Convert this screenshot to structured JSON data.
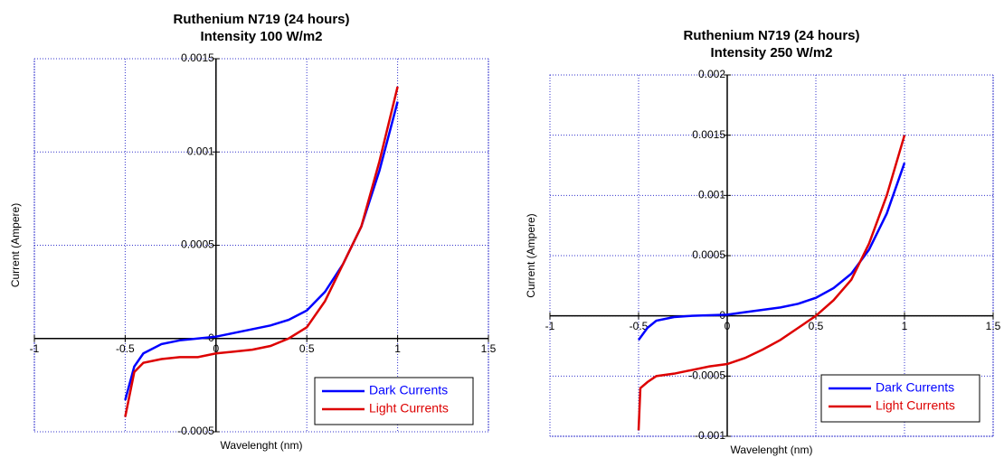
{
  "chart_data": [
    {
      "type": "line",
      "title": "Ruthenium N719 (24 hours)",
      "subtitle": "Intensity 100 W/m2",
      "x_label": "Wavelenght (nm)",
      "y_label": "Current (Ampere)",
      "xlim": [
        -1,
        1.5
      ],
      "xticks": [
        -1,
        -0.5,
        0,
        0.5,
        1,
        1.5
      ],
      "ylim": [
        -0.0005,
        0.0015
      ],
      "yticks": [
        -0.0005,
        0,
        0.0005,
        0.001,
        0.0015
      ],
      "grid": true,
      "legend": "lower right",
      "series": [
        {
          "name": "Dark Currents",
          "color": "#0000ff",
          "x": [
            -0.5,
            -0.45,
            -0.4,
            -0.3,
            -0.2,
            -0.1,
            0,
            0.1,
            0.2,
            0.3,
            0.4,
            0.5,
            0.6,
            0.7,
            0.8,
            0.9,
            1
          ],
          "values": [
            -0.00033,
            -0.00015,
            -8e-05,
            -3e-05,
            -1e-05,
            0,
            1e-05,
            3e-05,
            5e-05,
            7e-05,
            0.0001,
            0.00015,
            0.00025,
            0.0004,
            0.0006,
            0.0009,
            0.00127
          ]
        },
        {
          "name": "Light Currents",
          "color": "#dd0000",
          "x": [
            -0.5,
            -0.45,
            -0.4,
            -0.3,
            -0.2,
            -0.1,
            0,
            0.1,
            0.2,
            0.3,
            0.4,
            0.5,
            0.6,
            0.7,
            0.8,
            0.9,
            1
          ],
          "values": [
            -0.00042,
            -0.00018,
            -0.00013,
            -0.00011,
            -0.0001,
            -0.0001,
            -8e-05,
            -7e-05,
            -6e-05,
            -4e-05,
            0,
            6e-05,
            0.0002,
            0.0004,
            0.0006,
            0.00095,
            0.00135
          ]
        }
      ]
    },
    {
      "type": "line",
      "title": "Ruthenium N719 (24 hours)",
      "subtitle": "Intensity 250 W/m2",
      "x_label": "Wavelenght (nm)",
      "y_label": "Current (Ampere)",
      "xlim": [
        -1,
        1.5
      ],
      "xticks": [
        -1,
        -0.5,
        0,
        0.5,
        1,
        1.5
      ],
      "ylim": [
        -0.001,
        0.002
      ],
      "yticks": [
        -0.001,
        -0.0005,
        0,
        0.0005,
        0.001,
        0.0015,
        0.002
      ],
      "grid": true,
      "legend": "lower right",
      "series": [
        {
          "name": "Dark Currents",
          "color": "#0000ff",
          "x": [
            -0.5,
            -0.45,
            -0.4,
            -0.3,
            -0.2,
            0,
            0.1,
            0.2,
            0.3,
            0.4,
            0.5,
            0.6,
            0.7,
            0.8,
            0.9,
            1
          ],
          "values": [
            -0.0002,
            -0.0001,
            -4e-05,
            -1e-05,
            0,
            1e-05,
            3e-05,
            5e-05,
            7e-05,
            0.0001,
            0.00015,
            0.00023,
            0.00035,
            0.00055,
            0.00085,
            0.00127
          ]
        },
        {
          "name": "Light Currents",
          "color": "#dd0000",
          "x": [
            -0.5,
            -0.49,
            -0.45,
            -0.4,
            -0.3,
            -0.2,
            -0.1,
            0,
            0.1,
            0.2,
            0.3,
            0.4,
            0.5,
            0.6,
            0.7,
            0.8,
            0.9,
            1
          ],
          "values": [
            -0.00095,
            -0.0006,
            -0.00055,
            -0.0005,
            -0.00048,
            -0.00045,
            -0.00042,
            -0.0004,
            -0.00035,
            -0.00028,
            -0.0002,
            -0.0001,
            0,
            0.00013,
            0.0003,
            0.0006,
            0.001,
            0.0015
          ]
        }
      ]
    }
  ]
}
